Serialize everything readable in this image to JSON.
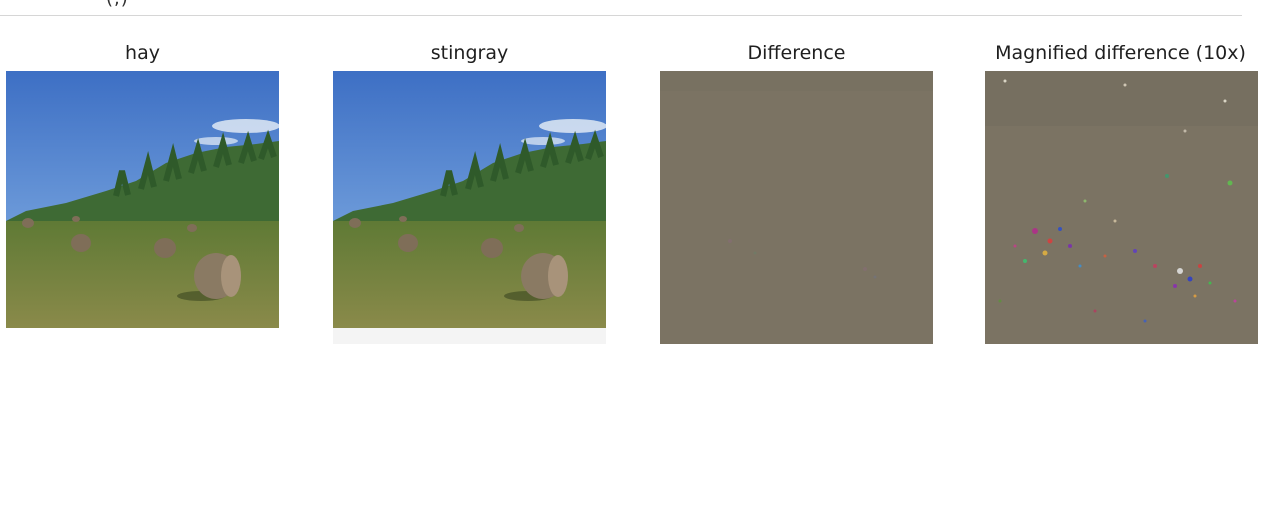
{
  "output_cell": {
    "top_fragment": "(,)"
  },
  "panels": [
    {
      "title": "hay",
      "image": "hay-bales-field-photo"
    },
    {
      "title": "stingray",
      "image": "hay-bales-field-photo-adversarial"
    },
    {
      "title": "Difference",
      "image": "difference-noise-image"
    },
    {
      "title": "Magnified difference (10x)",
      "image": "magnified-difference-noise-image"
    }
  ],
  "colors": {
    "sky_top": "#3d6fc4",
    "sky_bottom": "#8db8e8",
    "trees": "#3e6a34",
    "grass": "#6d7d3c",
    "bale": "#8a7a63",
    "noise_gray": "#7b7363"
  }
}
